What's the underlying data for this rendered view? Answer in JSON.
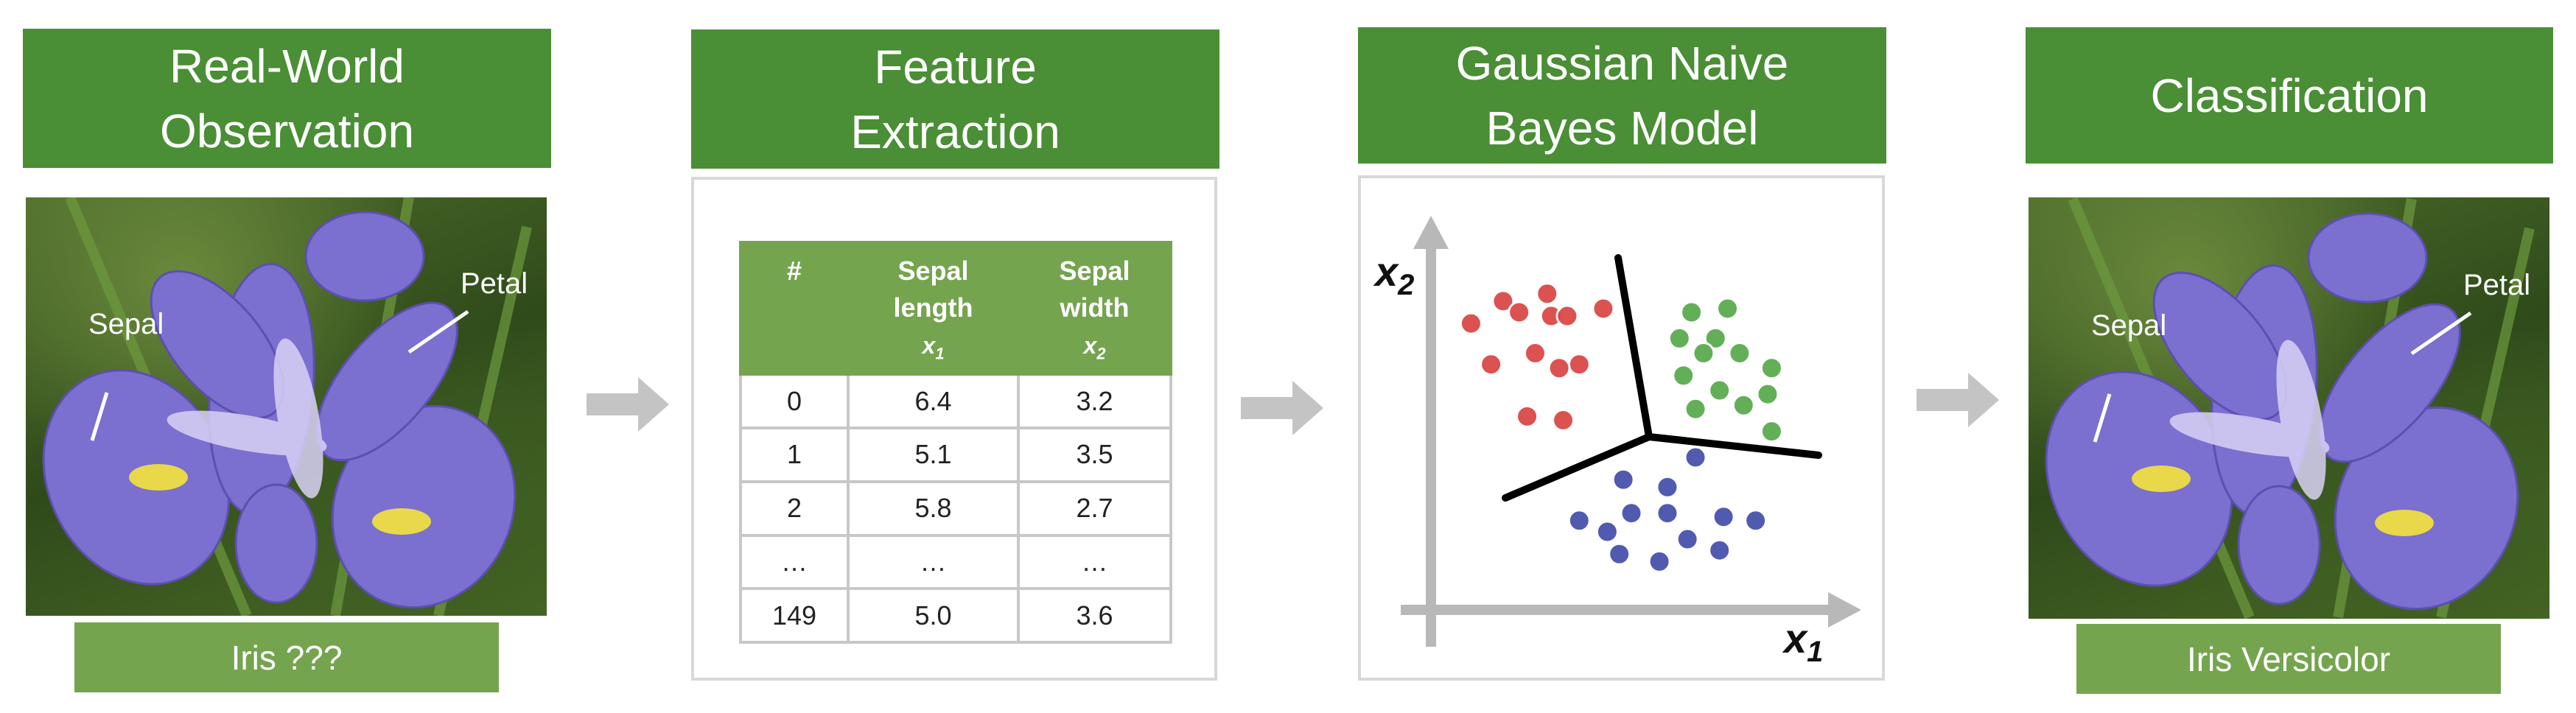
{
  "stages": [
    {
      "title": "Real-World\nObservation"
    },
    {
      "title": "Feature\nExtraction"
    },
    {
      "title": "Gaussian Naive\nBayes Model"
    },
    {
      "title": "Classification"
    }
  ],
  "observation": {
    "sepal_label": "Sepal",
    "petal_label": "Petal",
    "caption": "Iris ???"
  },
  "classification": {
    "sepal_label": "Sepal",
    "petal_label": "Petal",
    "caption": "Iris Versicolor"
  },
  "table": {
    "headers": [
      {
        "line1": "#",
        "line2": "",
        "var": ""
      },
      {
        "line1": "Sepal",
        "line2": "length",
        "var": "x",
        "sub": "1"
      },
      {
        "line1": "Sepal",
        "line2": "width",
        "var": "x",
        "sub": "2"
      }
    ],
    "rows": [
      [
        "0",
        "6.4",
        "3.2"
      ],
      [
        "1",
        "5.1",
        "3.5"
      ],
      [
        "2",
        "5.8",
        "2.7"
      ],
      [
        "…",
        "…",
        "…"
      ],
      [
        "149",
        "5.0",
        "3.6"
      ]
    ]
  },
  "chart_data": {
    "type": "scatter",
    "xlabel": "x1",
    "ylabel": "x2",
    "grid": false,
    "xlim": [
      0,
      10
    ],
    "ylim": [
      0,
      10
    ],
    "series": [
      {
        "color": "#d9403f",
        "x": [
          1.8,
          2.2,
          2.9,
          3.0,
          3.4,
          4.3,
          3.7,
          1.0,
          1.5,
          2.6,
          3.2,
          2.4,
          3.3
        ],
        "y": [
          8.3,
          8.0,
          8.5,
          7.9,
          7.9,
          8.1,
          6.6,
          7.7,
          6.6,
          6.9,
          6.5,
          5.2,
          5.1
        ]
      },
      {
        "color": "#53a747",
        "x": [
          6.5,
          7.4,
          7.1,
          6.2,
          6.8,
          7.7,
          8.5,
          6.3,
          7.2,
          8.4,
          7.8,
          6.6,
          8.5
        ],
        "y": [
          8.0,
          8.1,
          7.3,
          7.3,
          6.9,
          6.9,
          6.5,
          6.3,
          5.9,
          5.8,
          5.5,
          5.4,
          4.8
        ]
      },
      {
        "color": "#3e4aa8",
        "x": [
          6.6,
          4.8,
          5.9,
          5.9,
          5.0,
          3.7,
          4.4,
          6.4,
          7.3,
          8.1,
          4.7,
          5.7,
          7.2
        ],
        "y": [
          4.1,
          3.5,
          3.3,
          2.6,
          2.6,
          2.4,
          2.1,
          1.9,
          2.5,
          2.4,
          1.5,
          1.3,
          1.6
        ]
      }
    ]
  }
}
